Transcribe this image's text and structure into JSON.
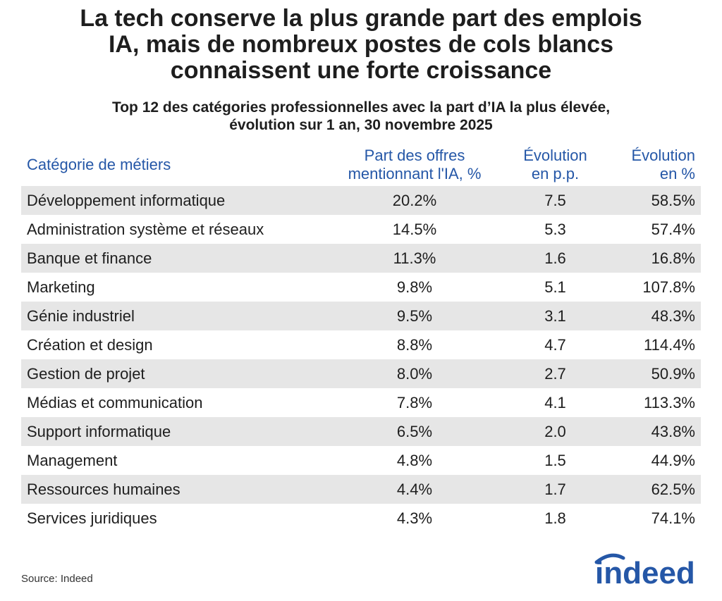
{
  "header": {
    "title": "La tech conserve la plus grande part des emplois\nIA, mais de nombreux postes de cols blancs\nconnaissent une forte croissance",
    "subtitle": "Top 12 des catégories professionnelles avec la part d’IA la plus élevée,\névolution sur 1 an, 30 novembre 2025"
  },
  "table": {
    "columns": [
      "Catégorie de métiers",
      "Part des offres\nmentionnant l'IA, %",
      "Évolution\nen p.p.",
      "Évolution\nen %"
    ],
    "rows": [
      [
        "Développement informatique",
        "20.2%",
        "7.5",
        "58.5%"
      ],
      [
        "Administration système et réseaux",
        "14.5%",
        "5.3",
        "57.4%"
      ],
      [
        "Banque et finance",
        "11.3%",
        "1.6",
        "16.8%"
      ],
      [
        "Marketing",
        "9.8%",
        "5.1",
        "107.8%"
      ],
      [
        "Génie industriel",
        "9.5%",
        "3.1",
        "48.3%"
      ],
      [
        "Création et design",
        "8.8%",
        "4.7",
        "114.4%"
      ],
      [
        "Gestion de projet",
        "8.0%",
        "2.7",
        "50.9%"
      ],
      [
        "Médias et communication",
        "7.8%",
        "4.1",
        "113.3%"
      ],
      [
        "Support informatique",
        "6.5%",
        "2.0",
        "43.8%"
      ],
      [
        "Management",
        "4.8%",
        "1.5",
        "44.9%"
      ],
      [
        "Ressources humaines",
        "4.4%",
        "1.7",
        "62.5%"
      ],
      [
        "Services juridiques",
        "4.3%",
        "1.8",
        "74.1%"
      ]
    ]
  },
  "footer": {
    "source": "Source: Indeed",
    "logo": "indeed"
  }
}
